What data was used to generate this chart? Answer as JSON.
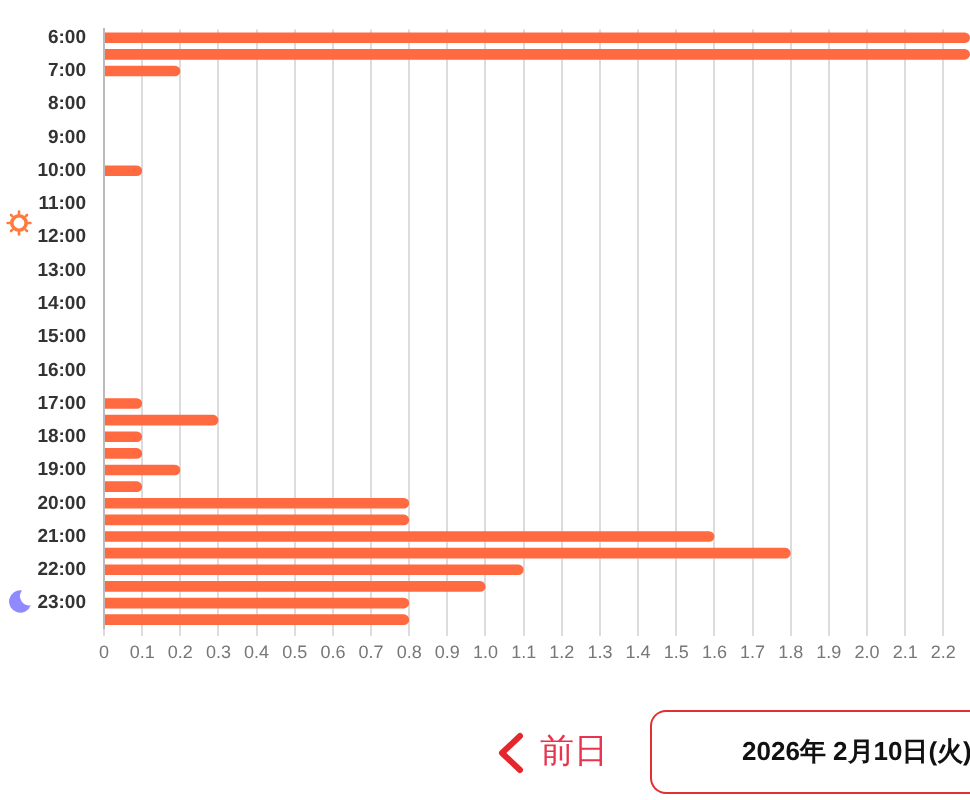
{
  "chart_data": {
    "type": "bar",
    "orientation": "horizontal",
    "categories": [
      "6:00",
      null,
      "7:00",
      null,
      "8:00",
      null,
      "9:00",
      null,
      "10:00",
      null,
      "11:00",
      null,
      "12:00",
      null,
      "13:00",
      null,
      "14:00",
      null,
      "15:00",
      null,
      "16:00",
      null,
      "17:00",
      null,
      "18:00",
      null,
      "19:00",
      null,
      "20:00",
      null,
      "21:00",
      null,
      "22:00",
      null,
      "23:00",
      null
    ],
    "values": [
      2.27,
      2.27,
      0.2,
      0,
      0,
      0,
      0,
      0,
      0.1,
      0,
      0,
      0,
      0,
      0,
      0,
      0,
      0,
      0,
      0,
      0,
      0,
      0,
      0.1,
      0.3,
      0.1,
      0.1,
      0.2,
      0.1,
      0.8,
      0.8,
      1.6,
      1.8,
      1.1,
      1.0,
      0.8,
      0.8
    ],
    "color": "#ff6a40",
    "xlim": [
      0,
      2.27
    ],
    "xticks": [
      0,
      0.1,
      0.2,
      0.3,
      0.4,
      0.5,
      0.6,
      0.7,
      0.8,
      0.9,
      {
        "value": 1,
        "label": "1.0"
      },
      1.1,
      1.2,
      1.3,
      1.4,
      1.5,
      1.6,
      1.7,
      1.8,
      1.9,
      {
        "value": 2,
        "label": "2.0"
      },
      2.1,
      2.2
    ],
    "grid": "x",
    "legend": false,
    "annotations": [
      "前日",
      "2026年 2月10日(火)"
    ]
  }
}
